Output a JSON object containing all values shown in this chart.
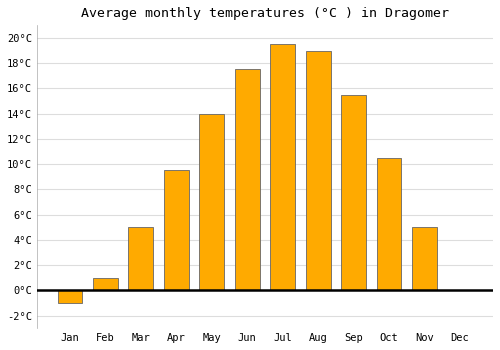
{
  "title": "Average monthly temperatures (°C ) in Dragomer",
  "months": [
    "Jan",
    "Feb",
    "Mar",
    "Apr",
    "May",
    "Jun",
    "Jul",
    "Aug",
    "Sep",
    "Oct",
    "Nov",
    "Dec"
  ],
  "values": [
    -1.0,
    1.0,
    5.0,
    9.5,
    14.0,
    17.5,
    19.5,
    19.0,
    15.5,
    10.5,
    5.0,
    0.0
  ],
  "bar_color": "#FFAA00",
  "bar_edge_color": "#666666",
  "ylim": [
    -3,
    21
  ],
  "yticks": [
    -2,
    0,
    2,
    4,
    6,
    8,
    10,
    12,
    14,
    16,
    18,
    20
  ],
  "ytick_labels": [
    "-2°C",
    "0°C",
    "2°C",
    "4°C",
    "6°C",
    "8°C",
    "10°C",
    "12°C",
    "14°C",
    "16°C",
    "18°C",
    "20°C"
  ],
  "background_color": "#ffffff",
  "plot_bg_color": "#ffffff",
  "grid_color": "#dddddd",
  "title_fontsize": 9.5,
  "tick_fontsize": 7.5,
  "zero_line_color": "#000000",
  "bar_width": 0.7,
  "figsize": [
    5.0,
    3.5
  ],
  "dpi": 100
}
